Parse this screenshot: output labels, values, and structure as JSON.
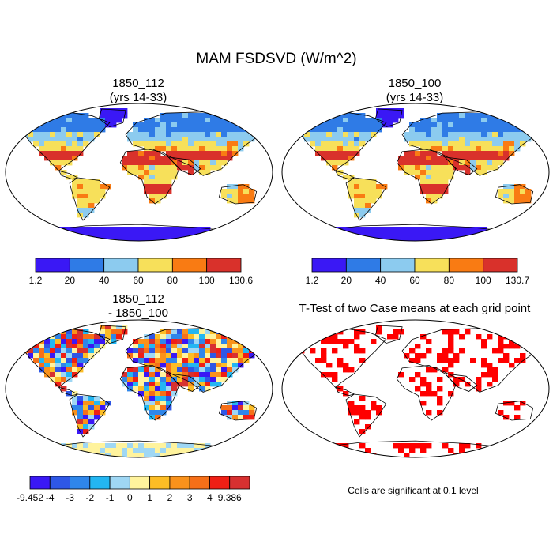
{
  "title": "MAM FSDSVD (W/m^2)",
  "panels": [
    {
      "title_line1": "1850_112",
      "title_line2": "(yrs 14-33)"
    },
    {
      "title_line1": "1850_100",
      "title_line2": "(yrs 14-33)"
    },
    {
      "title_line1": "1850_112",
      "title_line2": "- 1850_100"
    },
    {
      "title_line1": "T-Test of two Case means at each grid point",
      "title_line2": ""
    }
  ],
  "significance_note": "Cells are significant at 0.1 level",
  "chart_data": [
    {
      "type": "heatmap",
      "title": "1850_112 (yrs 14-33)",
      "colorbar": {
        "colors": [
          "#3a18f5",
          "#2f7be6",
          "#8ccbef",
          "#f7e05a",
          "#f97b13",
          "#d9312b"
        ],
        "labels": [
          "1.2",
          "20",
          "40",
          "60",
          "80",
          "100",
          "130.6"
        ]
      }
    },
    {
      "type": "heatmap",
      "title": "1850_100 (yrs 14-33)",
      "colorbar": {
        "colors": [
          "#3a18f5",
          "#2f7be6",
          "#8ccbef",
          "#f7e05a",
          "#f97b13",
          "#d9312b"
        ],
        "labels": [
          "1.2",
          "20",
          "40",
          "60",
          "80",
          "100",
          "130.7"
        ]
      }
    },
    {
      "type": "heatmap",
      "title": "1850_112 - 1850_100",
      "colorbar": {
        "colors": [
          "#3a18f5",
          "#2e57e6",
          "#2f86ea",
          "#23b6f2",
          "#9fd7f4",
          "#fff39d",
          "#fcbd25",
          "#f9921b",
          "#f66f18",
          "#ef1f15",
          "#d73030"
        ],
        "labels": [
          "-9.452",
          "-4",
          "-3",
          "-2",
          "-1",
          "0",
          "1",
          "2",
          "3",
          "4",
          "9.386"
        ]
      }
    },
    {
      "type": "heatmap",
      "title": "T-Test of two Case means at each grid point",
      "significant_color": "#ff0000"
    }
  ]
}
